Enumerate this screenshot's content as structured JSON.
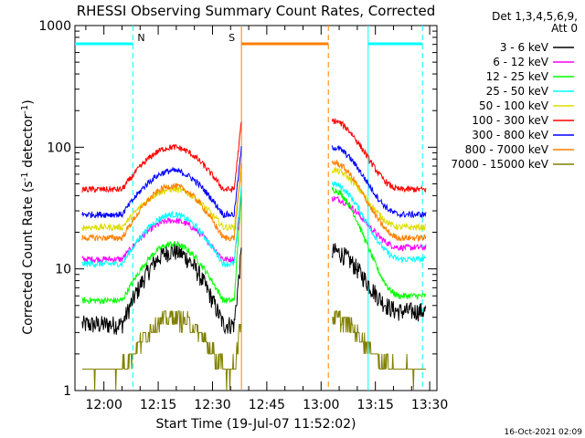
{
  "chart_data": {
    "type": "line",
    "title": "RHESSI Observing Summary Count Rates, Corrected",
    "xlabel": "Start Time (19-Jul-07 11:52:02)",
    "ylabel_parts": [
      "Corrected Count Rate (s",
      "-1",
      " detector",
      "-1",
      ")"
    ],
    "x_range_minutes": [
      "11:52",
      "13:32"
    ],
    "ylim": [
      1,
      1000
    ],
    "y_scale": "log",
    "x_ticks": [
      "12:00",
      "12:15",
      "12:30",
      "12:45",
      "13:00",
      "13:15",
      "13:30"
    ],
    "y_ticks": [
      "1",
      "10",
      "100",
      "1000"
    ],
    "legend_header": [
      "Det 1,3,4,5,6,9,",
      "Att 0"
    ],
    "legend_position": "right",
    "footer_date": "16-Oct-2021 02:09",
    "flags": [
      {
        "label": "N",
        "color": "#00ffff",
        "bars": [
          [
            "11:52",
            "12:08"
          ],
          [
            "13:13",
            "13:28"
          ]
        ]
      },
      {
        "label": "S",
        "color": "#ff8000",
        "bars": [
          [
            "12:38",
            "13:02"
          ]
        ]
      }
    ],
    "data_gaps": [
      [
        "12:38",
        "13:02"
      ]
    ],
    "series": [
      {
        "name": "3 - 6 keV",
        "color": "#000000",
        "base": 3.5,
        "peak": 14,
        "post_start": 14,
        "post_end": 4.5
      },
      {
        "name": "6 - 12 keV",
        "color": "#ff00ff",
        "base": 12,
        "peak": 25,
        "post_start": 38,
        "post_end": 15
      },
      {
        "name": "12 - 25 keV",
        "color": "#00ff00",
        "base": 5.5,
        "peak": 16,
        "post_start": 45,
        "post_end": 6
      },
      {
        "name": "25 - 50 keV",
        "color": "#00ffff",
        "base": 11,
        "peak": 28,
        "post_start": 50,
        "post_end": 12
      },
      {
        "name": "50 - 100 keV",
        "color": "#dddd00",
        "base": 22,
        "peak": 45,
        "post_start": 65,
        "post_end": 22
      },
      {
        "name": "100 - 300 keV",
        "color": "#ff0000",
        "base": 45,
        "peak": 100,
        "post_start": 165,
        "post_end": 45
      },
      {
        "name": "300 - 800 keV",
        "color": "#0000ff",
        "base": 28,
        "peak": 64,
        "post_start": 100,
        "post_end": 28
      },
      {
        "name": "800 - 7000 keV",
        "color": "#ff8000",
        "base": 18,
        "peak": 48,
        "post_start": 75,
        "post_end": 18
      },
      {
        "name": "7000 - 15000 keV",
        "color": "#808000",
        "base": 1.5,
        "peak": 4,
        "post_start": 4,
        "post_end": 1.5
      }
    ]
  }
}
